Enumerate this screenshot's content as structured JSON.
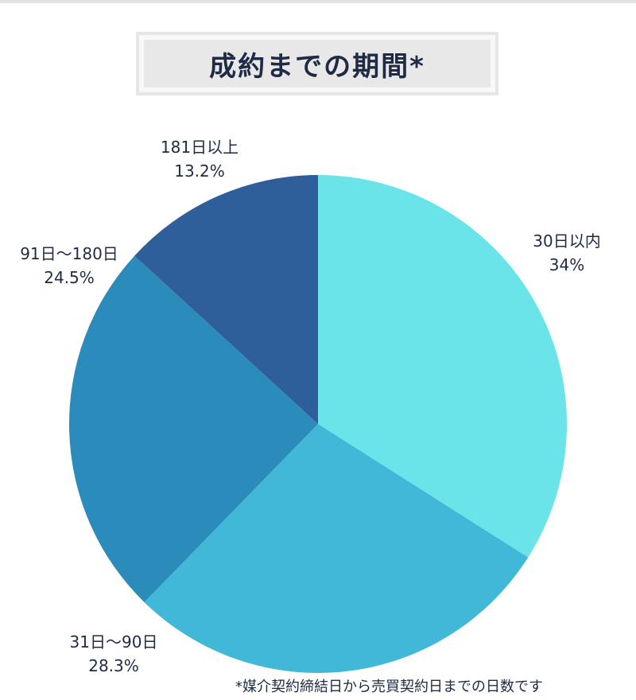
{
  "chart_data": {
    "type": "pie",
    "title": "成約までの期間*",
    "slices": [
      {
        "label": "30日以内",
        "value": 34,
        "display": "34%",
        "color": "#6ae4e8"
      },
      {
        "label": "31日〜90日",
        "value": 28.3,
        "display": "28.3%",
        "color": "#41b8d7"
      },
      {
        "label": "91日〜180日",
        "value": 24.5,
        "display": "24.5%",
        "color": "#2b8bba"
      },
      {
        "label": "181日以上",
        "value": 13.2,
        "display": "13.2%",
        "color": "#2e5f9a"
      }
    ],
    "footnote": "*媒介契約締結日から売買契約日までの日数です"
  }
}
